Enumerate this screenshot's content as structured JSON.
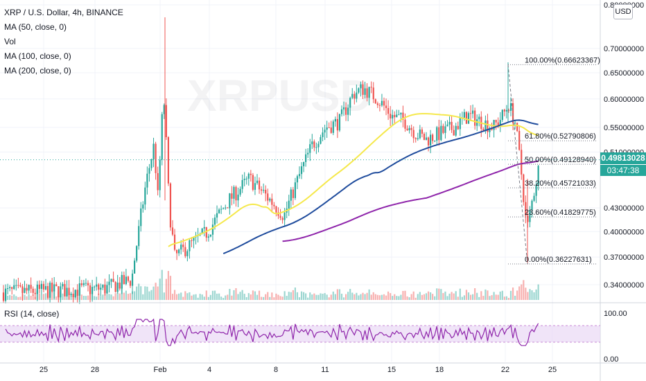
{
  "legend": {
    "symbol": "XRP / U.S. Dollar, 4h, BINANCE",
    "ma50": "MA (50, close, 0)",
    "vol": "Vol",
    "ma100": "MA (100, close, 0)",
    "ma200": "MA (200, close, 0)"
  },
  "rsi_label": "RSI (14, close)",
  "watermark": "XRPUSD",
  "currency_button": "USD",
  "last_price": "0.49813028",
  "countdown": "03:47:38",
  "colors": {
    "up": "#26a69a",
    "down": "#ef5350",
    "ma50": "#f5e84a",
    "ma100": "#1e4b9c",
    "ma200": "#8e24aa",
    "rsi": "#8e24aa",
    "rsi_band": "#e9d8f5"
  },
  "chart_data": [
    {
      "type": "candlestick",
      "price_axis": {
        "ticks": [
          "0.80000000",
          "0.70000000",
          "0.65000000",
          "0.60000000",
          "0.55000000",
          "0.51000000",
          "0.43000000",
          "0.40000000",
          "0.37000000",
          "0.34000000"
        ],
        "log_scale": true
      },
      "time_axis": {
        "ticks": [
          "25",
          "28",
          "Feb",
          "4",
          "8",
          "11",
          "15",
          "18",
          "22",
          "25"
        ]
      },
      "fibonacci": [
        {
          "label": "100.00%(0.66623367)",
          "value": 0.66623367
        },
        {
          "label": "61.80%(0.52790806)",
          "value": 0.52790806
        },
        {
          "label": "50.00%(0.49128940)",
          "value": 0.4912894
        },
        {
          "label": "38.20%(0.45721033)",
          "value": 0.45721033
        },
        {
          "label": "23.60%(0.41829775)",
          "value": 0.41829775
        },
        {
          "label": "0.00%(0.36227631)",
          "value": 0.36227631
        }
      ],
      "last_price": 0.49813028,
      "series": [
        {
          "name": "MA (50, close, 0)",
          "kind": "moving-average"
        },
        {
          "name": "MA (100, close, 0)",
          "kind": "moving-average"
        },
        {
          "name": "MA (200, close, 0)",
          "kind": "moving-average"
        },
        {
          "name": "Vol",
          "kind": "volume"
        }
      ]
    },
    {
      "type": "line",
      "indicator": "RSI (14, close)",
      "y_ticks": [
        "100.00",
        "0.00"
      ],
      "band": [
        30,
        70
      ]
    }
  ]
}
